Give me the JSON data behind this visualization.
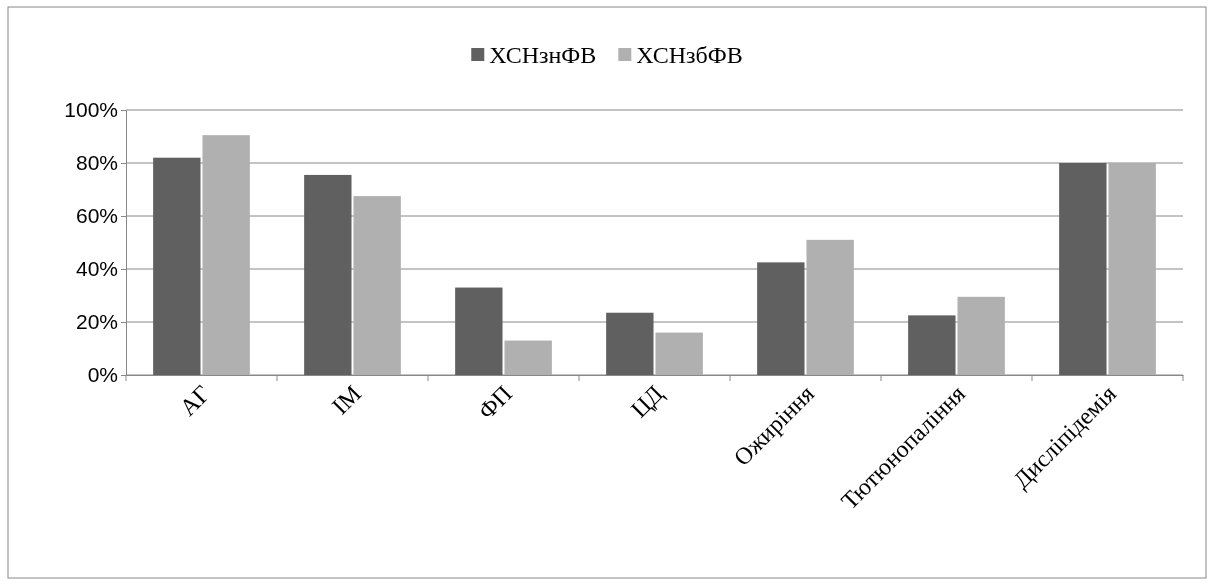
{
  "chart_data": {
    "type": "bar",
    "categories": [
      "АГ",
      "ІМ",
      "ФП",
      "ЦД",
      "Ожиріння",
      "Тютюнопаління",
      "Дисліпідемія"
    ],
    "series": [
      {
        "name": "ХСНзнФВ",
        "color": "#606060",
        "values": [
          82,
          75.5,
          33,
          23.5,
          42.5,
          22.5,
          80
        ]
      },
      {
        "name": "ХСНзбФВ",
        "color": "#b0b0b0",
        "values": [
          90.5,
          67.5,
          13,
          16,
          51,
          29.5,
          80
        ]
      }
    ],
    "ylim": [
      0,
      100
    ],
    "yticks": [
      {
        "value": 0,
        "label": "0%"
      },
      {
        "value": 20,
        "label": "20%"
      },
      {
        "value": 40,
        "label": "40%"
      },
      {
        "value": 60,
        "label": "60%"
      },
      {
        "value": 80,
        "label": "80%"
      },
      {
        "value": 100,
        "label": "100%"
      }
    ],
    "grid": "y",
    "legend": "top"
  }
}
